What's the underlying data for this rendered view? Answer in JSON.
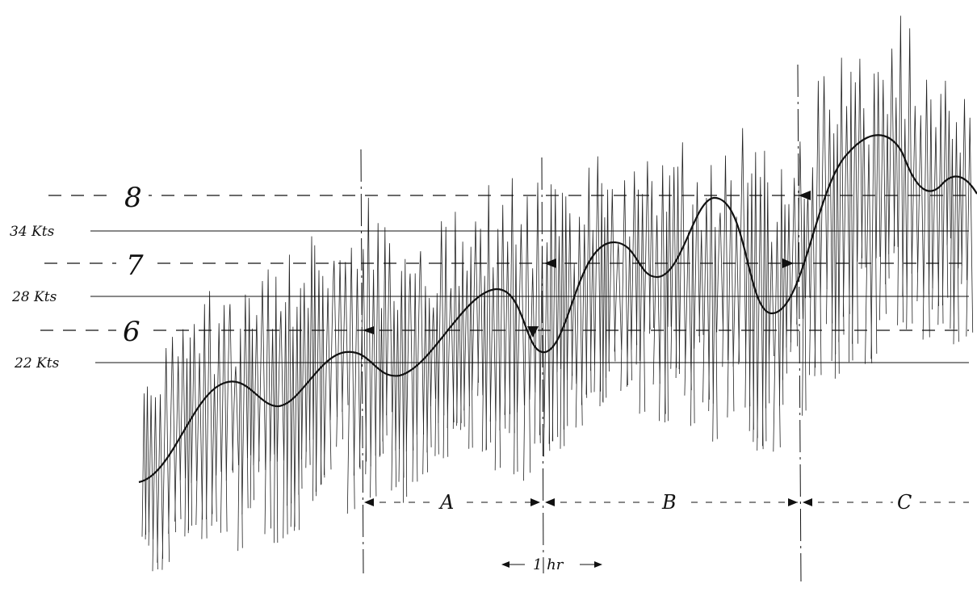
{
  "beaufort_levels": [
    {
      "label": "8",
      "value": 8
    },
    {
      "label": "7",
      "value": 7
    },
    {
      "label": "6",
      "value": 6
    }
  ],
  "speed_lines": [
    {
      "label": "34 Kts",
      "value": 34
    },
    {
      "label": "28 Kts",
      "value": 28
    },
    {
      "label": "22 Kts",
      "value": 22
    }
  ],
  "periods": [
    {
      "label": "A"
    },
    {
      "label": "B"
    },
    {
      "label": "C"
    }
  ],
  "scale": {
    "label": "1 hr"
  }
}
